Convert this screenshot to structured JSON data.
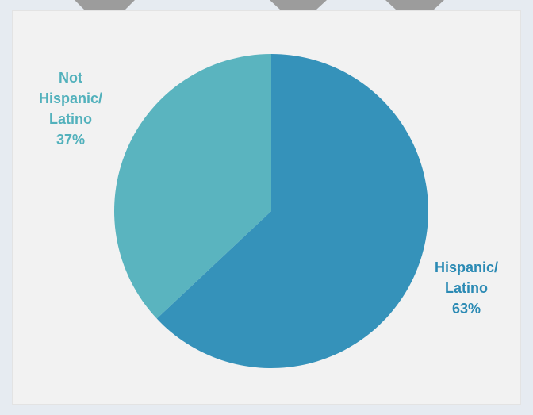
{
  "chart_data": {
    "type": "pie",
    "title": "",
    "slices": [
      {
        "label_lines": [
          "Hispanic/",
          "Latino"
        ],
        "percent_label": "63%",
        "value": 63,
        "color": "#3592ba",
        "label_color": "#2b8ab4"
      },
      {
        "label_lines": [
          "Not",
          "Hispanic/",
          "Latino"
        ],
        "percent_label": "37%",
        "value": 37,
        "color": "#5ab4bf",
        "label_color": "#52b1bc"
      }
    ],
    "start_angle_deg": 0,
    "direction": "clockwise"
  },
  "colors": {
    "page_background": "#e6ebf1",
    "panel_background": "#f2f2f2",
    "top_strip": "#9c9c9c"
  }
}
